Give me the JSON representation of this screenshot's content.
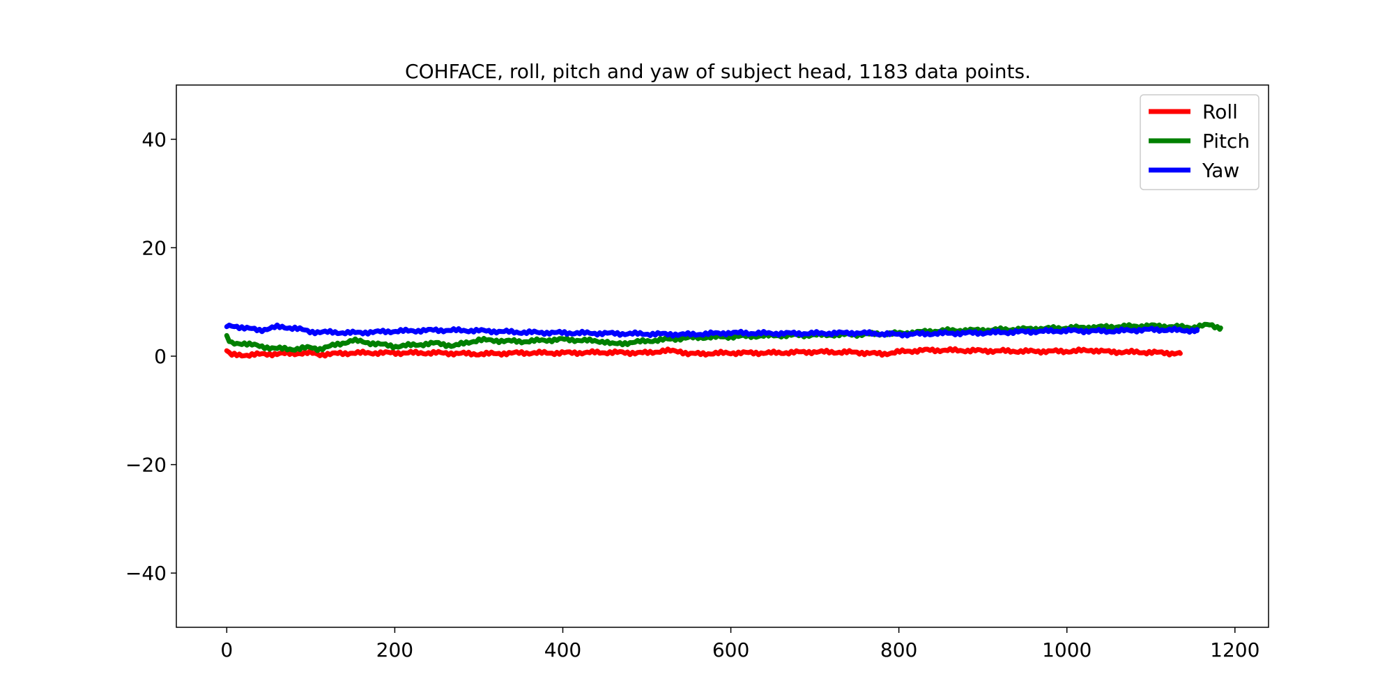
{
  "chart_data": {
    "type": "line",
    "title": "COHFACE, roll, pitch and yaw of subject head, 1183 data points.",
    "xlabel": "",
    "ylabel": "",
    "xlim": [
      -60,
      1240
    ],
    "ylim": [
      -50,
      50
    ],
    "xticks": [
      0,
      200,
      400,
      600,
      800,
      1000,
      1200
    ],
    "yticks": [
      -40,
      -20,
      0,
      20,
      40
    ],
    "xtick_labels": [
      "0",
      "200",
      "400",
      "600",
      "800",
      "1000",
      "1200"
    ],
    "ytick_labels": [
      "−40",
      "−20",
      "0",
      "20",
      "40"
    ],
    "grid": false,
    "legend_position": "top-right",
    "series": [
      {
        "name": "Roll",
        "color": "#ff0000",
        "x": [
          0,
          5,
          20,
          50,
          80,
          100,
          110,
          150,
          200,
          250,
          300,
          350,
          400,
          450,
          500,
          520,
          540,
          550,
          600,
          650,
          700,
          750,
          780,
          800,
          830,
          850,
          900,
          950,
          1000,
          1030,
          1050,
          1100,
          1135
        ],
        "values": [
          1.0,
          0.2,
          0.2,
          0.4,
          0.5,
          0.6,
          0.3,
          0.6,
          0.6,
          0.6,
          0.4,
          0.6,
          0.6,
          0.7,
          0.6,
          1.0,
          0.9,
          0.4,
          0.6,
          0.6,
          0.8,
          0.7,
          0.4,
          0.8,
          1.1,
          1.1,
          1.0,
          0.9,
          0.9,
          1.1,
          0.8,
          0.7,
          0.5
        ]
      },
      {
        "name": "Pitch",
        "color": "#008000",
        "x": [
          0,
          5,
          20,
          40,
          60,
          80,
          100,
          110,
          150,
          200,
          250,
          270,
          300,
          350,
          400,
          450,
          460,
          500,
          550,
          600,
          650,
          700,
          750,
          800,
          850,
          900,
          950,
          1000,
          1050,
          1100,
          1150,
          1170,
          1183
        ],
        "values": [
          3.5,
          2.3,
          2.4,
          1.8,
          1.4,
          1.3,
          1.6,
          1.3,
          2.9,
          1.8,
          2.4,
          1.9,
          3.0,
          2.7,
          3.1,
          2.7,
          2.2,
          2.8,
          3.4,
          3.6,
          3.8,
          3.9,
          4.0,
          4.2,
          4.7,
          4.8,
          5.0,
          5.2,
          5.4,
          5.6,
          5.3,
          5.8,
          5.2
        ]
      },
      {
        "name": "Yaw",
        "color": "#0000ff",
        "x": [
          0,
          10,
          20,
          40,
          60,
          80,
          100,
          150,
          200,
          250,
          300,
          350,
          400,
          450,
          500,
          550,
          600,
          650,
          700,
          750,
          800,
          850,
          900,
          950,
          1000,
          1050,
          1100,
          1130,
          1155
        ],
        "values": [
          5.5,
          5.6,
          5.2,
          4.8,
          5.4,
          5.2,
          4.5,
          4.3,
          4.6,
          4.8,
          4.7,
          4.4,
          4.3,
          4.2,
          4.1,
          4.0,
          4.3,
          4.2,
          4.2,
          4.3,
          4.0,
          4.2,
          4.3,
          4.5,
          4.7,
          4.6,
          4.9,
          4.8,
          4.7
        ]
      }
    ]
  }
}
